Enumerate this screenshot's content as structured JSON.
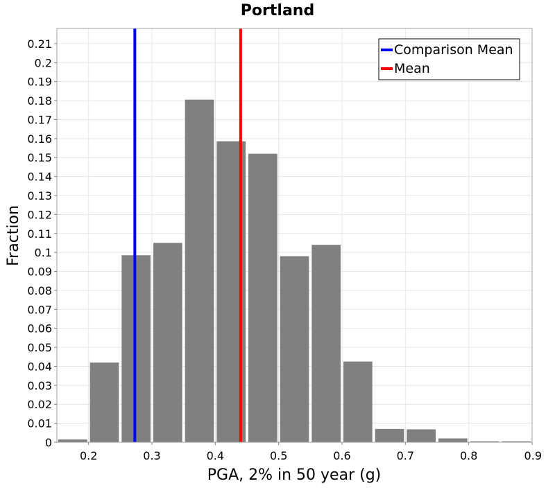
{
  "chart_data": {
    "type": "bar",
    "title": "Portland",
    "xlabel": "PGA, 2% in 50 year (g)",
    "ylabel": "Fraction",
    "xlim": [
      0.15,
      0.9
    ],
    "ylim": [
      0,
      0.218
    ],
    "x_ticks": [
      "0.2",
      "0.3",
      "0.4",
      "0.5",
      "0.6",
      "0.7",
      "0.8",
      "0.9"
    ],
    "y_ticks": [
      "0",
      "0.01",
      "0.02",
      "0.03",
      "0.04",
      "0.05",
      "0.06",
      "0.07",
      "0.08",
      "0.09",
      "0.1",
      "0.11",
      "0.12",
      "0.13",
      "0.14",
      "0.15",
      "0.16",
      "0.17",
      "0.18",
      "0.19",
      "0.2",
      "0.21"
    ],
    "bin_width": 0.05,
    "bins": [
      0.175,
      0.225,
      0.275,
      0.325,
      0.375,
      0.425,
      0.475,
      0.525,
      0.575,
      0.625,
      0.675,
      0.725,
      0.775,
      0.825,
      0.875
    ],
    "values": [
      0.0015,
      0.042,
      0.0985,
      0.105,
      0.1805,
      0.1585,
      0.152,
      0.098,
      0.104,
      0.0425,
      0.007,
      0.0068,
      0.002,
      0.0005,
      0.0005
    ],
    "bar_color": "#808080",
    "grid": true,
    "legend_position": "top-right",
    "lines": [
      {
        "name": "Comparison Mean",
        "x": 0.273,
        "color": "#0000ff"
      },
      {
        "name": "Mean",
        "x": 0.44,
        "color": "#ff0000"
      }
    ]
  }
}
